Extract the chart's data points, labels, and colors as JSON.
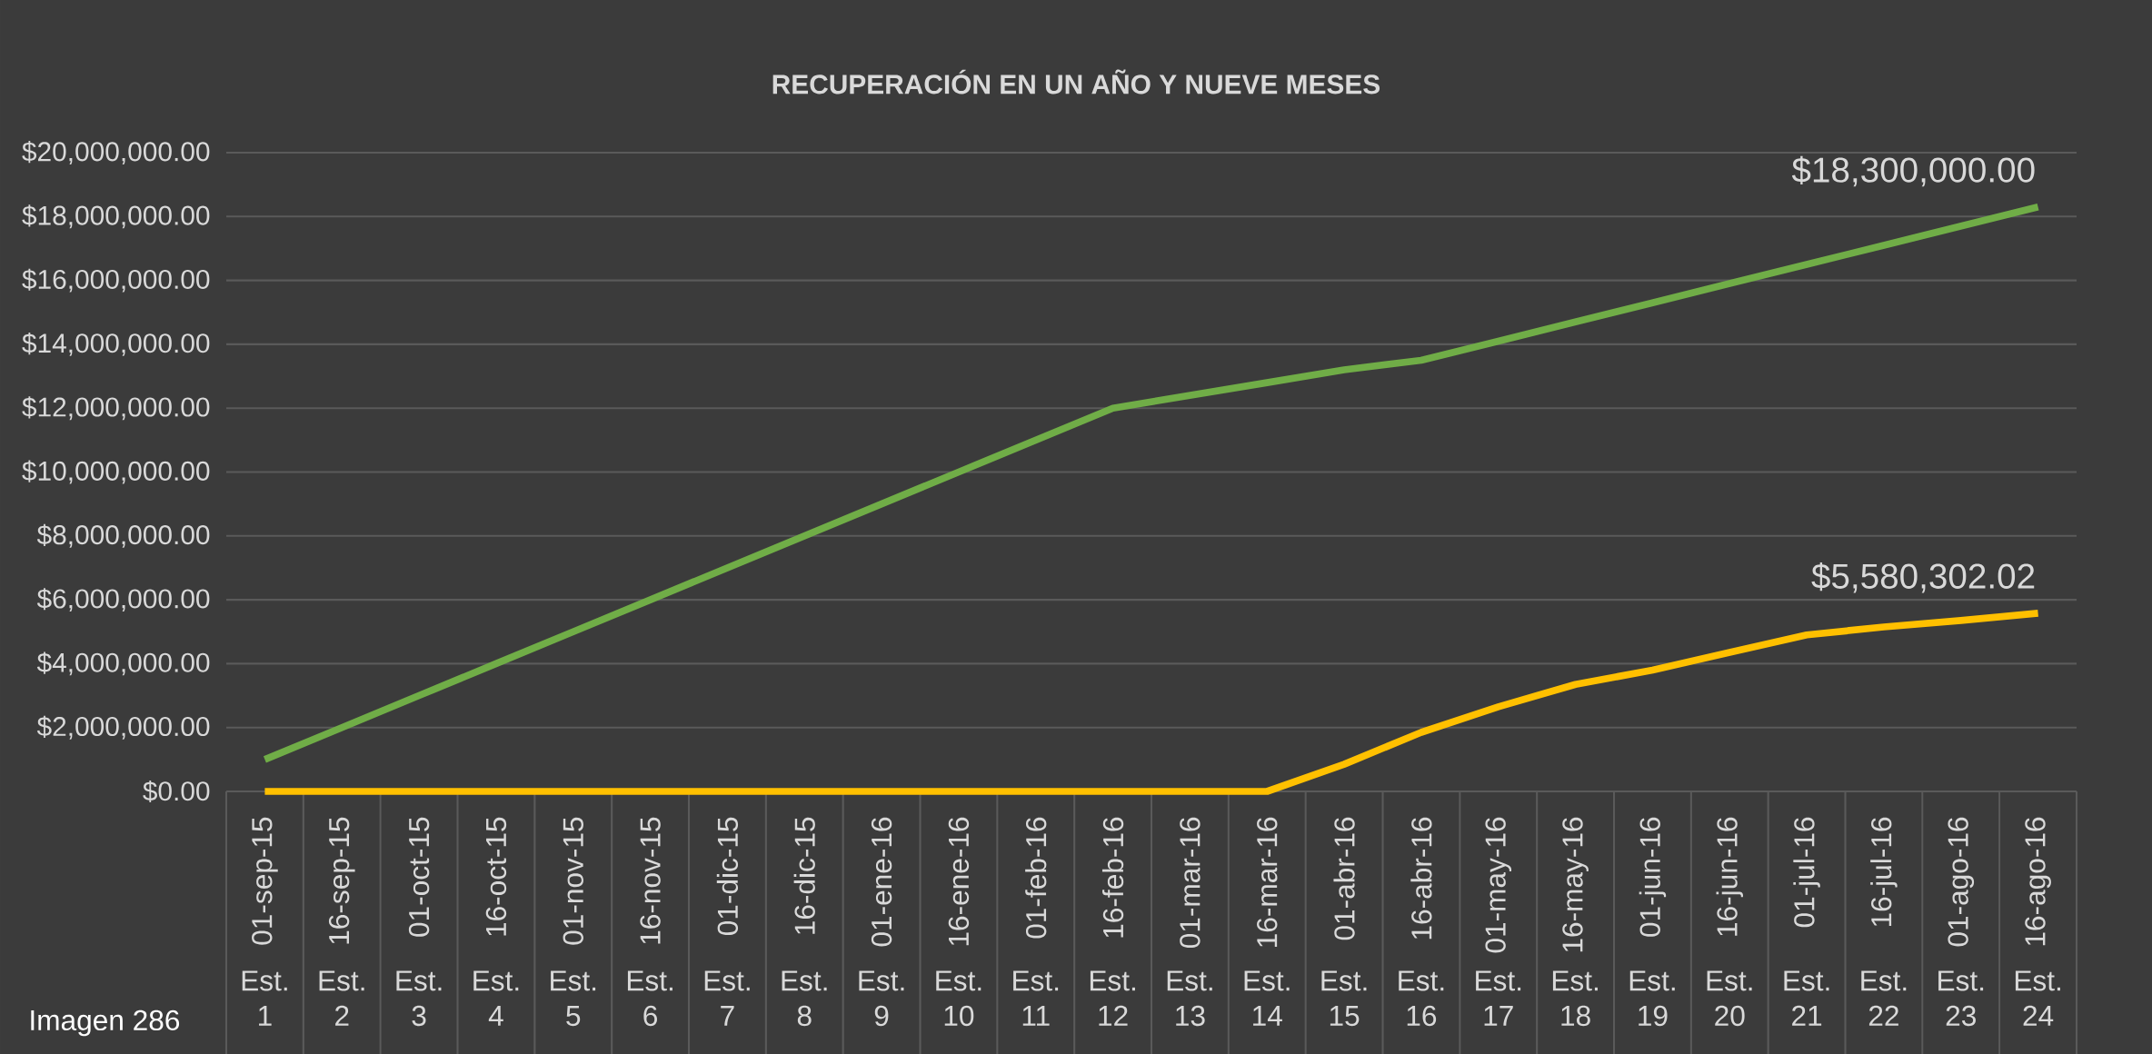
{
  "chart_data": {
    "type": "line",
    "title": "RECUPERACIÓN EN UN AÑO Y NUEVE MESES",
    "categories": [
      "01-sep-15",
      "16-sep-15",
      "01-oct-15",
      "16-oct-15",
      "01-nov-15",
      "16-nov-15",
      "01-dic-15",
      "16-dic-15",
      "01-ene-16",
      "16-ene-16",
      "01-feb-16",
      "16-feb-16",
      "01-mar-16",
      "16-mar-16",
      "01-abr-16",
      "16-abr-16",
      "01-may-16",
      "16-may-16",
      "01-jun-16",
      "16-jun-16",
      "01-jul-16",
      "16-jul-16",
      "01-ago-16",
      "16-ago-16"
    ],
    "series": [
      {
        "color": "#70ad47",
        "values": [
          1000000,
          2000000,
          3000000,
          4000000,
          5000000,
          6000000,
          7000000,
          8000000,
          9000000,
          10000000,
          11000000,
          12000000,
          12400000,
          12800000,
          13200000,
          13500000,
          14100000,
          14700000,
          15300000,
          15900000,
          16500000,
          17100000,
          17700000,
          18300000
        ],
        "value_labels": [
          null,
          null,
          null,
          null,
          null,
          null,
          null,
          null,
          null,
          null,
          null,
          null,
          null,
          null,
          null,
          null,
          null,
          null,
          null,
          null,
          null,
          null,
          null,
          "$18,300,000.00"
        ]
      },
      {
        "color": "#ffc000",
        "values": [
          0,
          0,
          0,
          0,
          0,
          0,
          0,
          0,
          0,
          0,
          0,
          0,
          0,
          0,
          850000,
          1850000,
          2650000,
          3350000,
          3800000,
          4350000,
          4900000,
          5150000,
          5350000,
          5580302.02
        ],
        "value_labels": [
          null,
          null,
          null,
          null,
          null,
          null,
          null,
          null,
          null,
          null,
          null,
          null,
          null,
          null,
          null,
          null,
          null,
          null,
          null,
          null,
          null,
          null,
          null,
          "$5,580,302.02"
        ]
      }
    ],
    "ylim": [
      0,
      20000000
    ],
    "yticks": [
      {
        "value": 0,
        "label": "$0.00"
      },
      {
        "value": 2000000,
        "label": "$2,000,000.00"
      },
      {
        "value": 4000000,
        "label": "$4,000,000.00"
      },
      {
        "value": 6000000,
        "label": "$6,000,000.00"
      },
      {
        "value": 8000000,
        "label": "$8,000,000.00"
      },
      {
        "value": 10000000,
        "label": "$10,000,000.00"
      },
      {
        "value": 12000000,
        "label": "$12,000,000.00"
      },
      {
        "value": 14000000,
        "label": "$14,000,000.00"
      },
      {
        "value": 16000000,
        "label": "$16,000,000.00"
      },
      {
        "value": 18000000,
        "label": "$18,000,000.00"
      },
      {
        "value": 20000000,
        "label": "$20,000,000.00"
      }
    ],
    "grid": "y",
    "marker": "none",
    "line_style": "solid",
    "annotations": [
      "Est. 1",
      "Est. 2",
      "Est. 3",
      "Est. 4",
      "Est. 5",
      "Est. 6",
      "Est. 7",
      "Est. 8",
      "Est. 9",
      "Est. 10",
      "Est. 11",
      "Est. 12",
      "Est. 13",
      "Est. 14",
      "Est. 15",
      "Est. 16",
      "Est. 17",
      "Est. 18",
      "Est. 19",
      "Est. 20",
      "Est. 21",
      "Est. 22",
      "Est. 23",
      "Est. 24",
      "Imagen  286"
    ]
  }
}
